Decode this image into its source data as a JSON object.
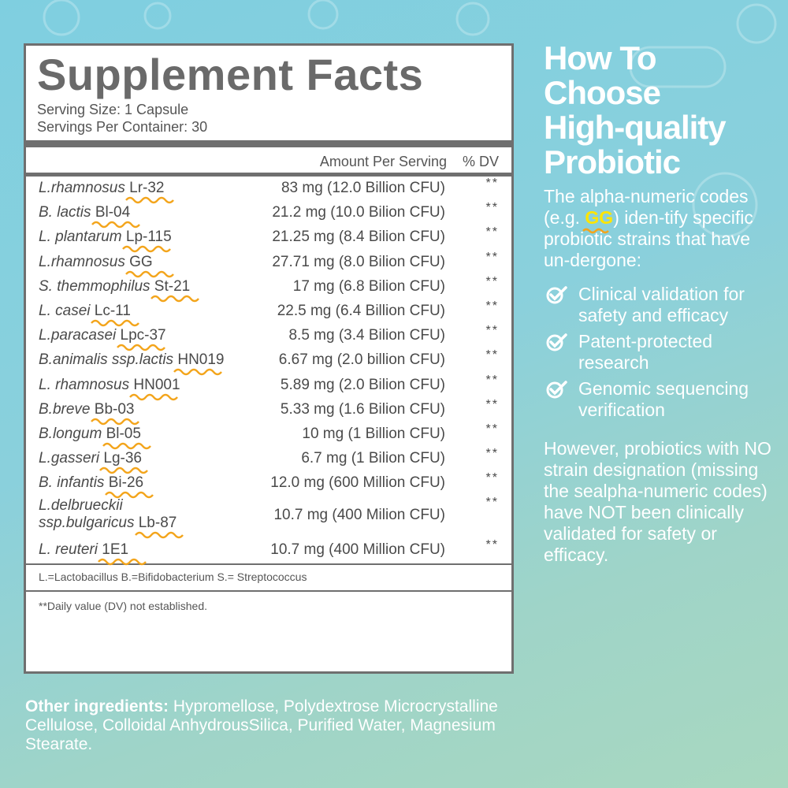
{
  "facts": {
    "title": "Supplement Facts",
    "serving_size": "Serving Size: 1 Capsule",
    "servings_per_container": "Servings Per Container: 30",
    "col_amount": "Amount Per Serving",
    "col_dv": "% DV",
    "rows": [
      {
        "name": "L.rhamnosus",
        "code": "Lr-32",
        "amount": "83 mg (12.0 Billion CFU)",
        "dv": "**"
      },
      {
        "name": "B. lactis",
        "code": "Bl-04",
        "amount": "21.2 mg (10.0 Bilion CFU)",
        "dv": "**"
      },
      {
        "name": "L. plantarum",
        "code": "Lp-115",
        "amount": "21.25 mg (8.4 Bilion CFU)",
        "dv": "**"
      },
      {
        "name": "L.rhamnosus",
        "code": "GG",
        "amount": "27.71 mg (8.0 Bilion CFU)",
        "dv": "**"
      },
      {
        "name": "S. themmophilus",
        "code": "St-21",
        "amount": "17 mg (6.8 Bilion CFU)",
        "dv": "**"
      },
      {
        "name": "L. casei",
        "code": "Lc-11",
        "amount": "22.5 mg (6.4 Billion CFU)",
        "dv": "**"
      },
      {
        "name": "L.paracasei",
        "code": "Lpc-37",
        "amount": "8.5 mg (3.4 Bilion CFU)",
        "dv": "**"
      },
      {
        "name": "B.animalis ssp.lactis",
        "code": "HN019",
        "amount": "6.67 mg (2.0 billion CFU)",
        "dv": "**"
      },
      {
        "name": "L. rhamnosus",
        "code": "HN001",
        "amount": "5.89 mg (2.0 Bilion CFU)",
        "dv": "**"
      },
      {
        "name": "B.breve",
        "code": "Bb-03",
        "amount": "5.33 mg (1.6 Bilion CFU)",
        "dv": "**"
      },
      {
        "name": "B.longum",
        "code": "Bl-05",
        "amount": "10 mg (1 Billion CFU)",
        "dv": "**"
      },
      {
        "name": "L.gasseri",
        "code": "Lg-36",
        "amount": "6.7 mg (1 Bilion CFU)",
        "dv": "**"
      },
      {
        "name": "B. infantis",
        "code": "Bi-26",
        "amount": "12.0 mg (600 Million CFU)",
        "dv": "**"
      },
      {
        "name": "L.delbrueckii",
        "name2": "ssp.bulgaricus",
        "code": "Lb-87",
        "amount": "10.7 mg (400 Milion CFU)",
        "dv": "**"
      },
      {
        "name": "L. reuteri",
        "code": "1E1",
        "amount": "10.7 mg (400 Million CFU)",
        "dv": "**"
      }
    ],
    "abbreviations": "L.=Lactobacillus B.=Bifidobacterium S.= Streptococcus",
    "footnote": "**Daily value (DV) not established."
  },
  "other": {
    "label": "Other ingredients:",
    "text": " Hypromellose, Polydextrose Microcrystalline Cellulose, Colloidal AnhydrousSilica, Purified Water, Magnesium Stearate."
  },
  "right": {
    "headline": [
      "How To",
      "Choose",
      "High-quality",
      "Probiotic"
    ],
    "intro_a": "The alpha-numeric codes (e.g. ",
    "intro_code": "GG",
    "intro_b": ") iden-tify specific probiotic strains that have un-dergone:",
    "checks": [
      "Clinical validation for safety and efficacy",
      "Patent-protected research",
      "Genomic sequencing verification"
    ],
    "however": "However, probiotics with NO strain designation (missing the sealpha-numeric codes) have NOT been clinically validated for safety or efficacy."
  },
  "colors": {
    "wave": "#f3a51c",
    "highlight": "#ffe500",
    "text_gray": "#4a4a4a"
  }
}
